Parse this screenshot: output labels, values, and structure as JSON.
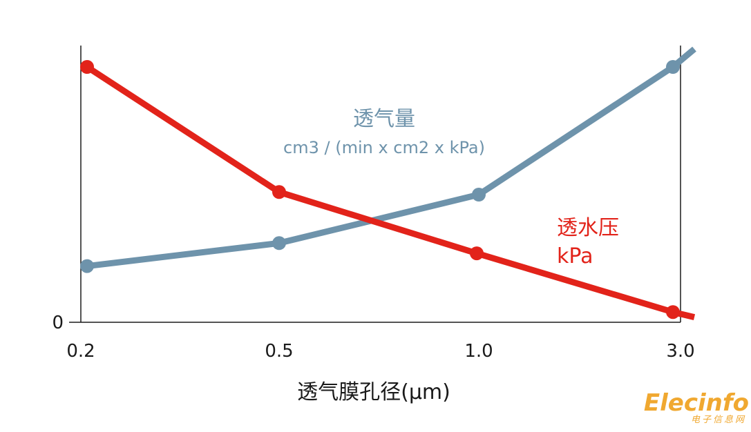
{
  "chart_data": {
    "type": "line",
    "title": "",
    "xlabel": "透气膜孔径(μm)",
    "ylabel": "",
    "categories": [
      "0.2",
      "0.5",
      "1.0",
      "3.0"
    ],
    "y_tick_labels": [
      "0"
    ],
    "ylim": [
      0,
      100
    ],
    "grid": false,
    "series": [
      {
        "name": "透气量",
        "unit": "cm3 / (min x cm2 x kPa)",
        "color": "#6e93ab",
        "values": [
          22,
          31,
          50,
          100
        ],
        "extension_value": 107
      },
      {
        "name": "透水压",
        "unit": "kPa",
        "color": "#e2231a",
        "values": [
          100,
          51,
          27,
          4
        ],
        "extension_value": 2
      }
    ]
  },
  "watermark": {
    "main": "Elecinfo",
    "sub": "电子信息网",
    "color": "#f0a830"
  }
}
